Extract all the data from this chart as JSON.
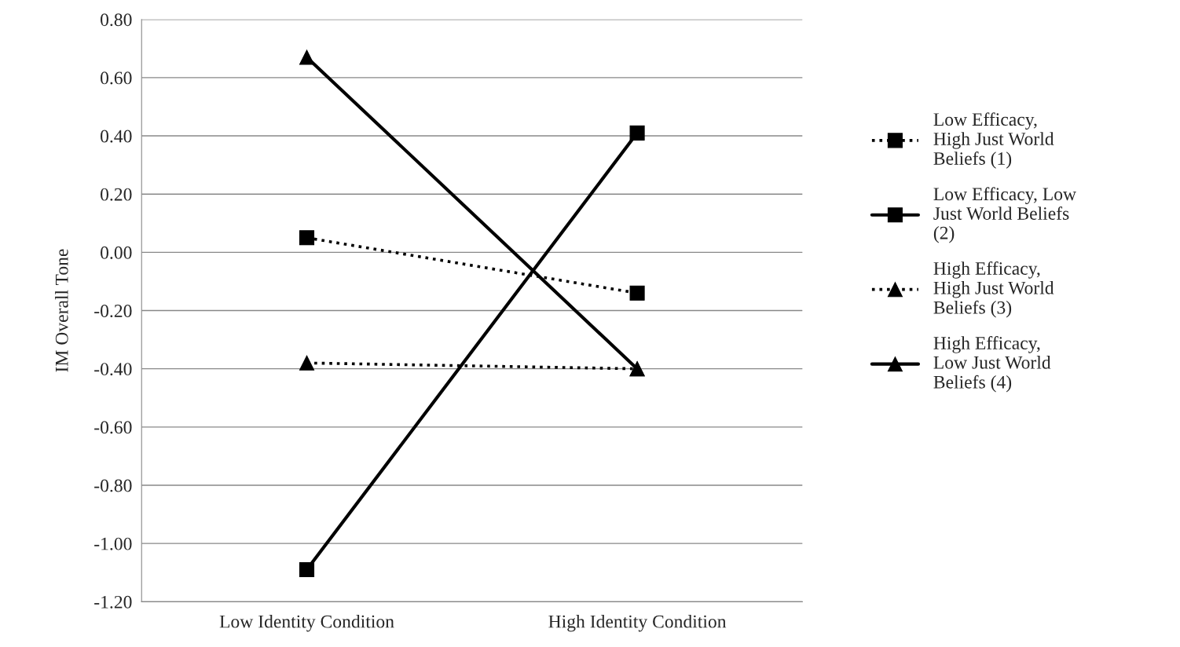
{
  "chart_data": {
    "type": "line",
    "ylabel": "IM Overall Tone",
    "categories": [
      "Low Identity Condition",
      "High Identity Condition"
    ],
    "series": [
      {
        "name": "Low Efficacy,\nHigh Just World\nBeliefs (1)",
        "color": "#000000",
        "values": [
          0.05,
          -0.14
        ],
        "line_style": "dotted",
        "marker": "square"
      },
      {
        "name": "Low Efficacy, Low\nJust World Beliefs\n(2)",
        "color": "#000000",
        "values": [
          -1.09,
          0.41
        ],
        "line_style": "solid",
        "marker": "square"
      },
      {
        "name": "High Efficacy,\nHigh Just World\nBeliefs (3)",
        "color": "#000000",
        "values": [
          -0.38,
          -0.4
        ],
        "line_style": "dotted",
        "marker": "triangle"
      },
      {
        "name": "High Efficacy,\nLow Just World\nBeliefs (4)",
        "color": "#000000",
        "values": [
          0.67,
          -0.4
        ],
        "line_style": "solid",
        "marker": "triangle"
      }
    ],
    "ylim": [
      -1.2,
      0.8
    ],
    "yticks": [
      {
        "value": -1.2,
        "label": "-1.20"
      },
      {
        "value": -1.0,
        "label": "-1.00"
      },
      {
        "value": -0.8,
        "label": "-0.80"
      },
      {
        "value": -0.6,
        "label": "-0.60"
      },
      {
        "value": -0.4,
        "label": "-0.40"
      },
      {
        "value": -0.2,
        "label": "-0.20"
      },
      {
        "value": 0.0,
        "label": "0.00"
      },
      {
        "value": 0.2,
        "label": "0.20"
      },
      {
        "value": 0.4,
        "label": "0.40"
      },
      {
        "value": 0.6,
        "label": "0.60"
      },
      {
        "value": 0.8,
        "label": "0.80"
      }
    ],
    "grid": "y",
    "legend": "right"
  }
}
